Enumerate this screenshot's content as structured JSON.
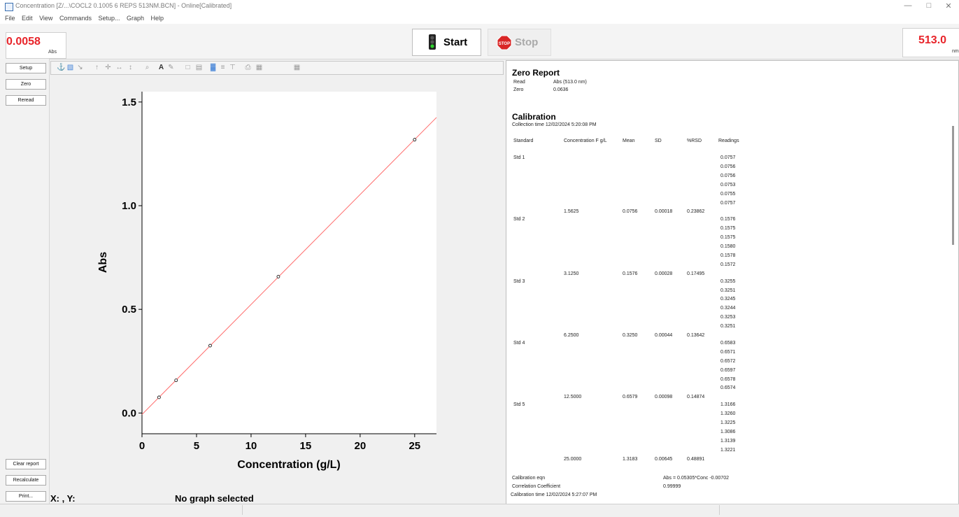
{
  "window": {
    "title": "Concentration [Z/...\\COCL2 0.1005 6 REPS 513NM.BCN] - Online[Calibrated]",
    "minimize_glyph": "—",
    "restore_glyph": "□",
    "close_glyph": "✕"
  },
  "menu": [
    "File",
    "Edit",
    "View",
    "Commands",
    "Setup...",
    "Graph",
    "Help"
  ],
  "readings": {
    "left_value": "0.0058",
    "left_unit": "Abs",
    "right_value": "513.0",
    "right_unit": "nm"
  },
  "controls": {
    "start_label": "Start",
    "stop_label": "Stop",
    "stop_icon_text": "STOP",
    "start_icon": "traffic-light-icon",
    "stop_icon": "stop-sign-icon"
  },
  "sidebar": {
    "top_buttons": [
      "Setup",
      "Zero",
      "Reread"
    ],
    "bottom_buttons": [
      "Clear report",
      "Recalculate",
      "Print..."
    ]
  },
  "graph_toolbar_icons": [
    "pointer-icon",
    "chart-color-icon",
    "arrow-tool-icon",
    "move-up-icon",
    "move-all-icon",
    "horizontal-stretch-icon",
    "vertical-stretch-icon",
    "zoom-icon",
    "font-icon",
    "text-color-icon",
    "layout-icon",
    "legend-icon",
    "grid-icon",
    "scale-icon",
    "axis-icon",
    "print-graph-icon",
    "table-icon",
    "calendar-icon"
  ],
  "graph_toolbar_glyphs": [
    "⚓",
    "▧",
    "↘",
    "↑",
    "✛",
    "↔",
    "↕",
    "⌕",
    "A",
    "✎",
    "□",
    "▤",
    "▓",
    "≡",
    "⊤",
    "⎙",
    "▦",
    "▦"
  ],
  "chart_data": {
    "type": "scatter",
    "xlabel": "Concentration (g/L)",
    "ylabel": "Abs",
    "xlim": [
      0,
      27
    ],
    "ylim": [
      -0.1,
      1.55
    ],
    "xticks": [
      0,
      5,
      10,
      15,
      20,
      25
    ],
    "yticks": [
      0.0,
      0.5,
      1.0,
      1.5
    ],
    "ytick_labels": [
      "0.0",
      "0.5",
      "1.0",
      "1.5"
    ],
    "points": [
      {
        "x": 1.5625,
        "y": 0.0756
      },
      {
        "x": 3.125,
        "y": 0.1576
      },
      {
        "x": 6.25,
        "y": 0.325
      },
      {
        "x": 12.5,
        "y": 0.6579
      },
      {
        "x": 25.0,
        "y": 1.3183
      }
    ],
    "fit": {
      "slope": 0.05305,
      "intercept": -0.00702
    },
    "fit_color": "#ff6a6a",
    "grid": false
  },
  "status": {
    "xy": "X: , Y:",
    "graph_state": "No graph selected"
  },
  "report": {
    "zero_title": "Zero Report",
    "zero_rows": [
      {
        "label": "Read",
        "value": "Abs (513.0 nm)"
      },
      {
        "label": "Zero",
        "value": "0.0636"
      }
    ],
    "calibration_title": "Calibration",
    "collection_time": "Collection time 12/02/2024 5:20:08 PM",
    "headers": [
      "Standard",
      "Concentration  F g/L",
      "Mean",
      "SD",
      "%RSD",
      "Readings"
    ],
    "standards": [
      {
        "name": "Std 1",
        "conc": "1.5625",
        "mean": "0.0756",
        "sd": "0.00018",
        "rsd": "0.23862",
        "readings": [
          "0.0757",
          "0.0756",
          "0.0756",
          "0.0753",
          "0.0755",
          "0.0757"
        ]
      },
      {
        "name": "Std 2",
        "conc": "3.1250",
        "mean": "0.1576",
        "sd": "0.00028",
        "rsd": "0.17495",
        "readings": [
          "0.1576",
          "0.1575",
          "0.1575",
          "0.1580",
          "0.1578",
          "0.1572"
        ]
      },
      {
        "name": "Std 3",
        "conc": "6.2500",
        "mean": "0.3250",
        "sd": "0.00044",
        "rsd": "0.13642",
        "readings": [
          "0.3255",
          "0.3251",
          "0.3245",
          "0.3244",
          "0.3253",
          "0.3251"
        ]
      },
      {
        "name": "Std 4",
        "conc": "12.5000",
        "mean": "0.6579",
        "sd": "0.00098",
        "rsd": "0.14874",
        "readings": [
          "0.6583",
          "0.6571",
          "0.6572",
          "0.6597",
          "0.6578",
          "0.6574"
        ]
      },
      {
        "name": "Std 5",
        "conc": "25.0000",
        "mean": "1.3183",
        "sd": "0.00645",
        "rsd": "0.48891",
        "readings": [
          "1.3166",
          "1.3260",
          "1.3225",
          "1.3086",
          "1.3139",
          "1.3221"
        ]
      }
    ],
    "calibration_eqn_label": "Calibration eqn",
    "calibration_eqn": "Abs = 0.05305*Conc -0.00702",
    "correlation_label": "Correlation Coefficient",
    "correlation_value": "0.99999",
    "calibration_time": "Calibration time 12/02/2024 5:27:07 PM"
  },
  "colors": {
    "reading_red": "#e8242a",
    "fit_line": "#ff6a6a"
  }
}
